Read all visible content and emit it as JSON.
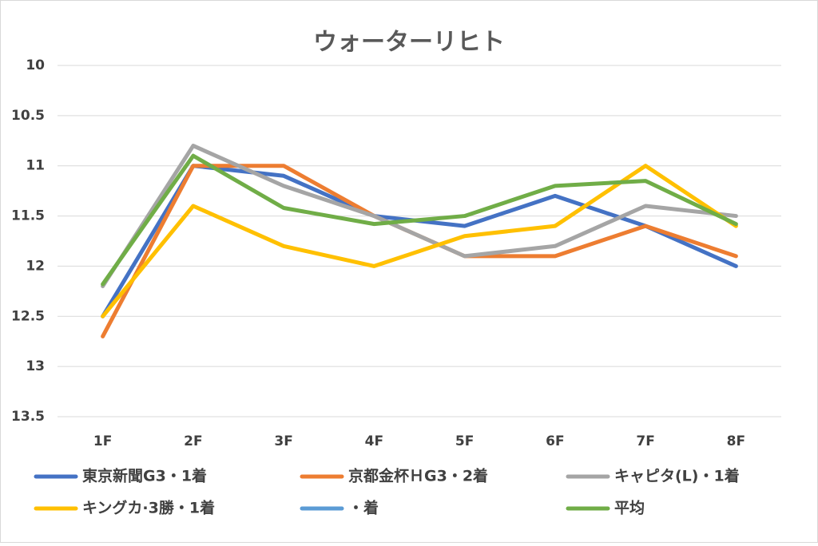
{
  "chart_data": {
    "type": "line",
    "title": "ウォーターリヒト",
    "categories": [
      "1F",
      "2F",
      "3F",
      "4F",
      "5F",
      "6F",
      "7F",
      "8F"
    ],
    "series": [
      {
        "name": "東京新聞G3・1着",
        "color": "#4472c4",
        "values": [
          12.5,
          11.0,
          11.1,
          11.5,
          11.6,
          11.3,
          11.6,
          12.0
        ]
      },
      {
        "name": "京都金杯ＨG3・2着",
        "color": "#ed7d31",
        "values": [
          12.7,
          11.0,
          11.0,
          11.5,
          11.9,
          11.9,
          11.6,
          11.9
        ]
      },
      {
        "name": "キャピタ(L)・1着",
        "color": "#a5a5a5",
        "values": [
          12.2,
          10.8,
          11.2,
          11.5,
          11.9,
          11.8,
          11.4,
          11.5
        ]
      },
      {
        "name": "キングカ·3勝・1着",
        "color": "#ffc000",
        "values": [
          12.5,
          11.4,
          11.8,
          12.0,
          11.7,
          11.6,
          11.0,
          11.6
        ]
      },
      {
        "name": "・着",
        "color": "#5b9bd5",
        "values": [
          null,
          null,
          null,
          null,
          null,
          null,
          null,
          null
        ]
      },
      {
        "name": "平均",
        "color": "#70ad47",
        "values": [
          12.18,
          10.9,
          11.42,
          11.58,
          11.5,
          11.2,
          11.15,
          11.58
        ]
      }
    ],
    "ylim": [
      10,
      13.5
    ],
    "yticks": [
      10,
      10.5,
      11,
      11.5,
      12,
      12.5,
      13,
      13.5
    ],
    "y_reversed": true,
    "grid": true,
    "legend": "bottom"
  }
}
